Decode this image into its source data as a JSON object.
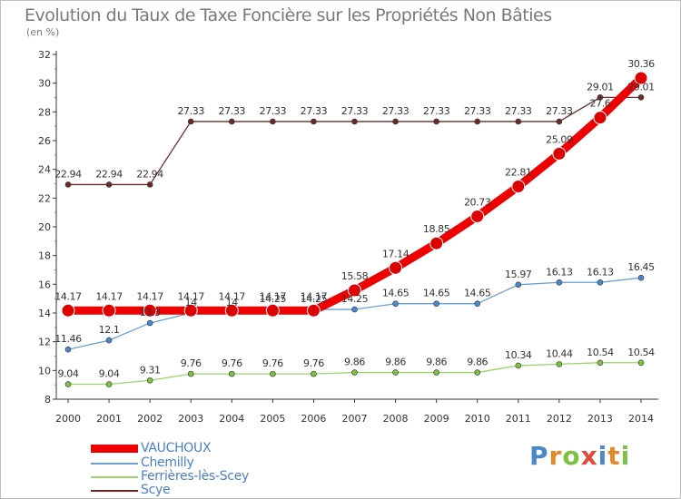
{
  "title": "Evolution du Taux de Taxe Foncière sur les Propriétés Non Bâties",
  "unit_label": "(en %)",
  "logo_text": "Proxiti",
  "colors": {
    "title": "#7a7a7a",
    "legend_text": "#4a7fc8",
    "axis": "#333333"
  },
  "chart_data": {
    "type": "line",
    "title": "Evolution du Taux de Taxe Foncière sur les Propriétés Non Bâties",
    "ylabel": "(en %)",
    "xlabel": "",
    "ylim": [
      8,
      32
    ],
    "yticks": [
      8,
      10,
      12,
      14,
      16,
      18,
      20,
      22,
      24,
      26,
      28,
      30,
      32
    ],
    "grid": false,
    "legend_position": "bottom-left",
    "x": [
      "2000",
      "2001",
      "2002",
      "2003",
      "2004",
      "2005",
      "2006",
      "2007",
      "2008",
      "2009",
      "2010",
      "2011",
      "2012",
      "2013",
      "2014"
    ],
    "series": [
      {
        "name": "Scye",
        "color": "#6b2a2a",
        "marker": "#6b2a2a",
        "values": [
          22.94,
          22.94,
          22.94,
          27.33,
          27.33,
          27.33,
          27.33,
          27.33,
          27.33,
          27.33,
          27.33,
          27.33,
          27.33,
          29.01,
          29.01
        ],
        "labels": [
          "22.94",
          "22.94",
          "22.94",
          "27.33",
          "27.33",
          "27.33",
          "27.33",
          "27.33",
          "27.33",
          "27.33",
          "27.33",
          "27.33",
          "27.33",
          "29.01",
          "29.01"
        ]
      },
      {
        "name": "Ferrières-lès-Scey",
        "color": "#9ad46a",
        "marker": "#7cc242",
        "values": [
          9.04,
          9.04,
          9.31,
          9.76,
          9.76,
          9.76,
          9.76,
          9.86,
          9.86,
          9.86,
          9.86,
          10.34,
          10.44,
          10.54,
          10.54
        ],
        "labels": [
          "9.04",
          "9.04",
          "9.31",
          "9.76",
          "9.76",
          "9.76",
          "9.76",
          "9.86",
          "9.86",
          "9.86",
          "9.86",
          "10.34",
          "10.44",
          "10.54",
          "10.54"
        ]
      },
      {
        "name": "Chemilly",
        "color": "#6a9fd4",
        "marker": "#4a88c8",
        "values": [
          11.46,
          12.1,
          13.3,
          14.0,
          14.0,
          14.25,
          14.25,
          14.25,
          14.65,
          14.65,
          14.65,
          15.97,
          16.13,
          16.13,
          16.45
        ],
        "labels": [
          "11.46",
          "12.1",
          "13.3",
          "14",
          "14",
          "14.25",
          "14.25",
          "14.25",
          "14.65",
          "14.65",
          "14.65",
          "15.97",
          "16.13",
          "16.13",
          "16.45"
        ]
      },
      {
        "name": "VAUCHOUX",
        "color": "#ee0000",
        "marker": "#dd0000",
        "values": [
          14.17,
          14.17,
          14.17,
          14.17,
          14.17,
          14.17,
          14.17,
          15.58,
          17.14,
          18.85,
          20.73,
          22.81,
          25.09,
          27.6,
          30.36
        ],
        "labels": [
          "14.17",
          "14.17",
          "14.17",
          "14.17",
          "14.17",
          "14.17",
          "14.17",
          "15.58",
          "17.14",
          "18.85",
          "20.73",
          "22.81",
          "25.09",
          "27.6",
          "30.36"
        ]
      }
    ],
    "legend": [
      "VAUCHOUX",
      "Chemilly",
      "Ferrières-lès-Scey",
      "Scye"
    ]
  }
}
